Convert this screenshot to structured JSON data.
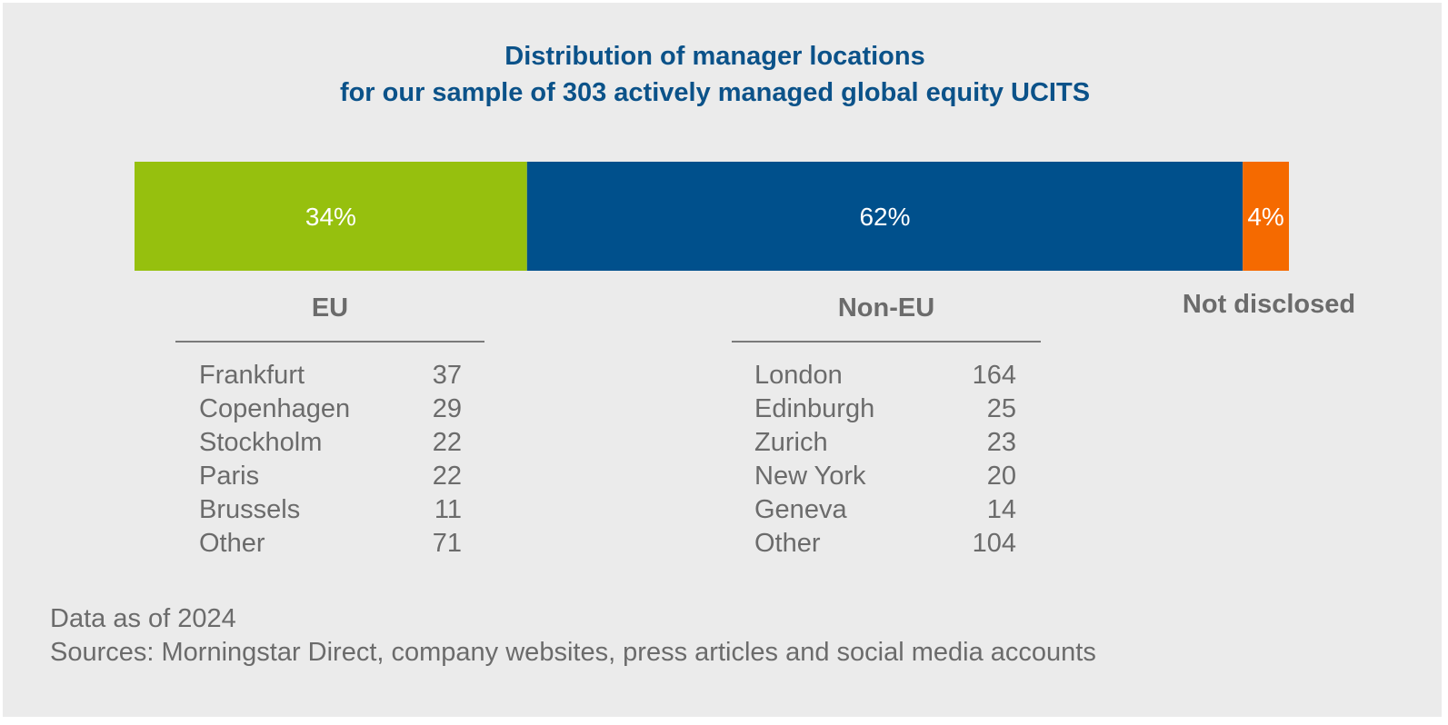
{
  "chart_data": {
    "type": "bar",
    "title": "Distribution of manager locations",
    "subtitle": "for our sample of 303 actively managed global equity UCITS",
    "segments": [
      {
        "name": "EU",
        "value": 34,
        "label": "34%",
        "color": "#96c00e"
      },
      {
        "name": "Non-EU",
        "value": 62,
        "label": "62%",
        "color": "#00508c"
      },
      {
        "name": "Not disclosed",
        "value": 4,
        "label": "4%",
        "color": "#f56a00"
      }
    ],
    "groups": [
      {
        "heading": "EU",
        "rows": [
          {
            "city": "Frankfurt",
            "count": "37"
          },
          {
            "city": "Copenhagen",
            "count": "29"
          },
          {
            "city": "Stockholm",
            "count": "22"
          },
          {
            "city": "Paris",
            "count": "22"
          },
          {
            "city": "Brussels",
            "count": "11"
          },
          {
            "city": "Other",
            "count": "71"
          }
        ]
      },
      {
        "heading": "Non-EU",
        "rows": [
          {
            "city": "London",
            "count": "164"
          },
          {
            "city": "Edinburgh",
            "count": "25"
          },
          {
            "city": "Zurich",
            "count": "23"
          },
          {
            "city": "New York",
            "count": "20"
          },
          {
            "city": "Geneva",
            "count": "14"
          },
          {
            "city": "Other",
            "count": "104"
          }
        ]
      },
      {
        "heading": "Not disclosed",
        "rows": []
      }
    ]
  },
  "footnote": {
    "date_note": "Data as of 2024",
    "sources": "Sources: Morningstar Direct, company websites, press articles and social media accounts"
  }
}
